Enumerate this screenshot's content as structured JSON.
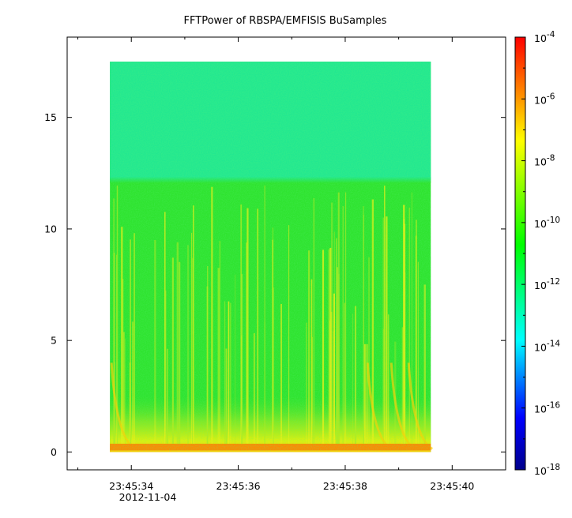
{
  "chart_data": {
    "type": "heatmap",
    "title": "FFTPower of RBSPA/EMFISIS  BuSamples",
    "xlabel": "",
    "ylabel": "",
    "x_axis": {
      "type": "time",
      "range": [
        "23:45:32.8",
        "23:45:41.0"
      ],
      "ticks": [
        "23:45:34",
        "23:45:36",
        "23:45:38",
        "23:45:40"
      ],
      "date_label": "2012-11-04"
    },
    "y_axis": {
      "range": [
        -0.8,
        18.6
      ],
      "ticks": [
        0,
        5,
        10,
        15
      ]
    },
    "data_extent": {
      "x_start": "23:45:33.6",
      "x_end": "23:45:39.6",
      "y_min": 0,
      "y_max": 17.5
    },
    "colorbar": {
      "scale": "log",
      "range": [
        1e-18,
        0.0001
      ],
      "tick_exponents": [
        -4,
        -6,
        -8,
        -10,
        -12,
        -14,
        -16,
        -18
      ],
      "tick_base": "10",
      "colormap": [
        "#00008b",
        "#0000ff",
        "#00ffff",
        "#00ff00",
        "#ffff00",
        "#ff0000"
      ]
    },
    "features": [
      {
        "y_range": [
          12.2,
          17.5
        ],
        "level": "~1e-12",
        "color": "#22e890"
      },
      {
        "y_range": [
          2.5,
          12.2
        ],
        "level": "~1e-10",
        "color": "#2ee32e"
      },
      {
        "y_range": [
          0,
          2.5
        ],
        "level": "~1e-8",
        "color": "#ffff00"
      },
      {
        "y_range": [
          0,
          0.3
        ],
        "level": "~1e-6",
        "color": "#ff8a00"
      }
    ],
    "grid": false
  }
}
